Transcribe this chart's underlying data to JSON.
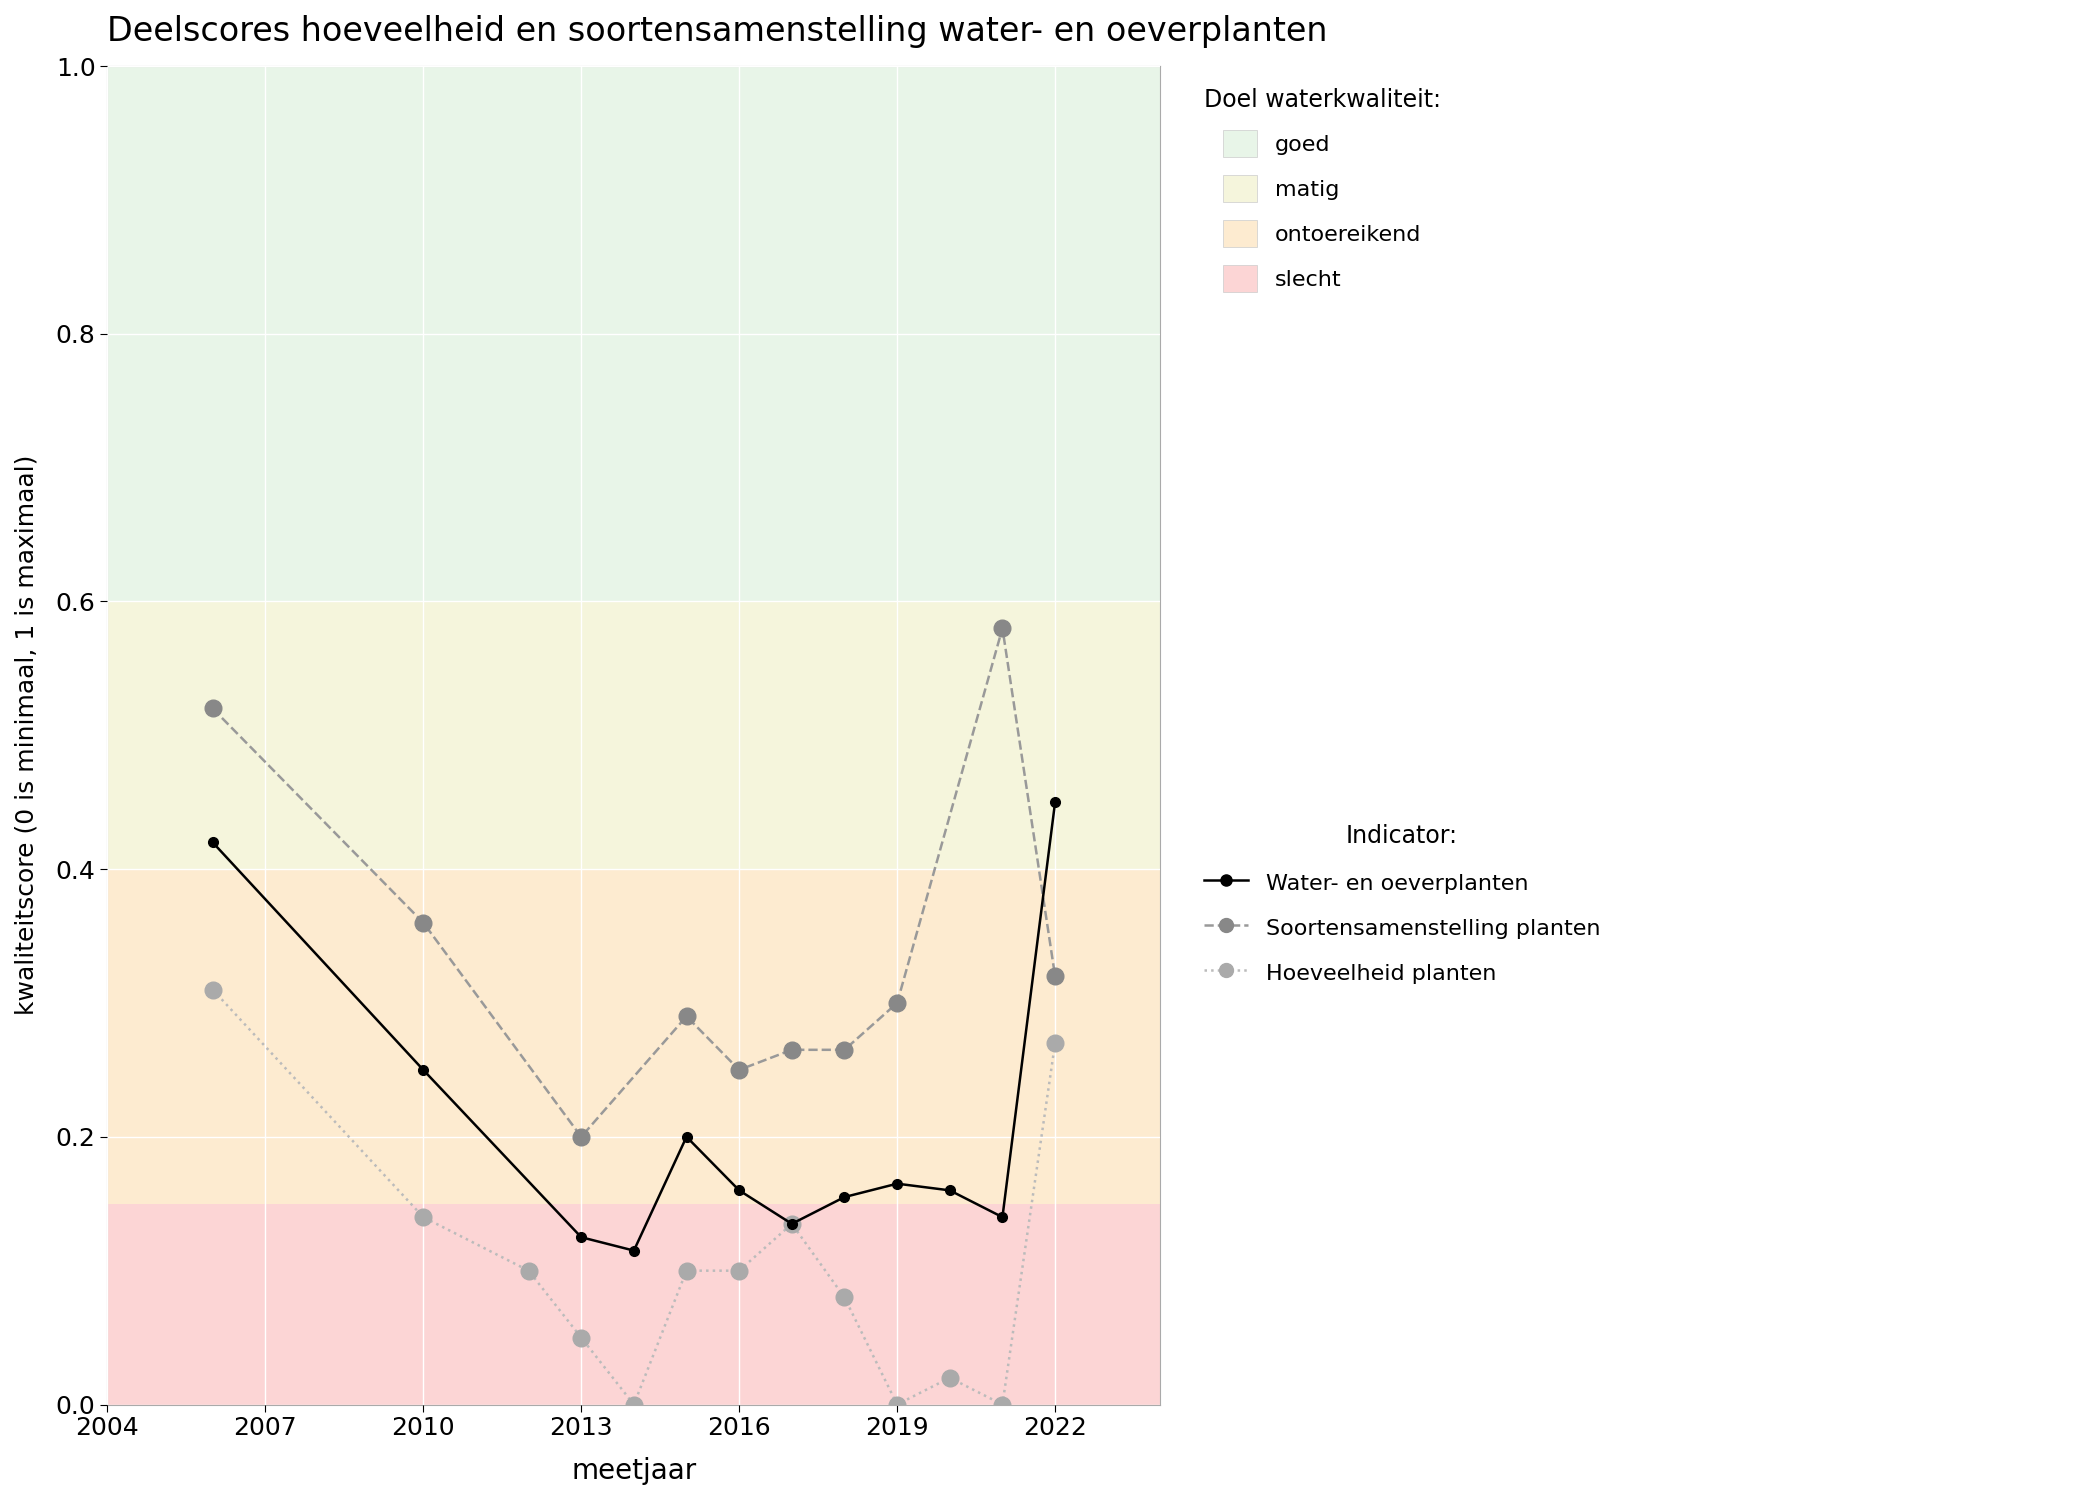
{
  "title": "Deelscores hoeveelheid en soortensamenstelling water- en oeverplanten",
  "xlabel": "meetjaar",
  "ylabel": "kwaliteitscore (0 is minimaal, 1 is maximaal)",
  "xlim": [
    2004,
    2024
  ],
  "ylim": [
    0.0,
    1.0
  ],
  "xticks": [
    2004,
    2007,
    2010,
    2013,
    2016,
    2019,
    2022
  ],
  "yticks": [
    0.0,
    0.2,
    0.4,
    0.6,
    0.8,
    1.0
  ],
  "figure_bg": "#ffffff",
  "plot_bg": "#ffffff",
  "quality_bands": [
    {
      "name": "goed",
      "ymin": 0.6,
      "ymax": 1.0,
      "color": "#e8f5e8"
    },
    {
      "name": "matig",
      "ymin": 0.4,
      "ymax": 0.6,
      "color": "#f5f5dc"
    },
    {
      "name": "ontoereikend",
      "ymin": 0.15,
      "ymax": 0.4,
      "color": "#fdebd0"
    },
    {
      "name": "slecht",
      "ymin": 0.0,
      "ymax": 0.15,
      "color": "#fcd5d5"
    }
  ],
  "line_water_oever": {
    "x": [
      2006,
      2010,
      2013,
      2014,
      2015,
      2016,
      2017,
      2018,
      2019,
      2020,
      2021,
      2022
    ],
    "y": [
      0.42,
      0.25,
      0.125,
      0.115,
      0.2,
      0.16,
      0.135,
      0.155,
      0.165,
      0.16,
      0.14,
      0.45
    ],
    "color": "#000000",
    "linestyle": "-",
    "linewidth": 1.8,
    "marker": "o",
    "markersize": 7,
    "label": "Water- en oeverplanten"
  },
  "line_soorten": {
    "x": [
      2006,
      2010,
      2013,
      2015,
      2016,
      2017,
      2018,
      2019,
      2021,
      2022
    ],
    "y": [
      0.52,
      0.36,
      0.2,
      0.29,
      0.25,
      0.265,
      0.265,
      0.3,
      0.58,
      0.32
    ],
    "color": "#999999",
    "linestyle": "--",
    "linewidth": 1.8,
    "marker": "o",
    "markersize": 12,
    "markerfacecolor": "#888888",
    "label": "Soortensamenstelling planten"
  },
  "line_hoeveelheid": {
    "x": [
      2006,
      2010,
      2012,
      2013,
      2014,
      2015,
      2016,
      2017,
      2018,
      2019,
      2020,
      2021,
      2022
    ],
    "y": [
      0.31,
      0.14,
      0.1,
      0.05,
      0.0,
      0.1,
      0.1,
      0.135,
      0.08,
      0.0,
      0.02,
      0.0,
      0.27
    ],
    "color": "#bbbbbb",
    "linestyle": ":",
    "linewidth": 1.8,
    "marker": "o",
    "markersize": 12,
    "markerfacecolor": "#aaaaaa",
    "label": "Hoeveelheid planten"
  },
  "legend_title_quality": "Doel waterkwaliteit:",
  "legend_quality_labels": [
    "goed",
    "matig",
    "ontoereikend",
    "slecht"
  ],
  "legend_quality_colors": [
    "#e8f5e8",
    "#f5f5dc",
    "#fdebd0",
    "#fcd5d5"
  ],
  "legend_title_indicator": "Indicator:"
}
